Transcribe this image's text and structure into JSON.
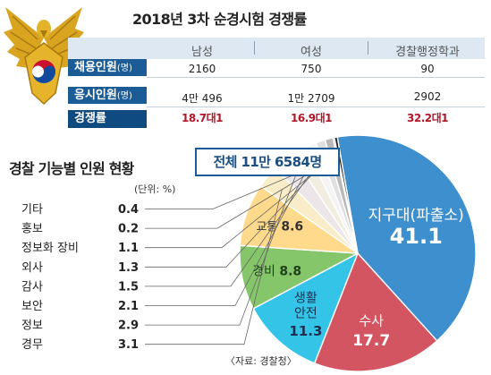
{
  "top_title": "2018년 3차 순경시험 경쟁률",
  "stats_table": {
    "columns": [
      "남성",
      "여성",
      "경찰행정학과"
    ],
    "rows": [
      {
        "label": "채용인원",
        "unit": "(명)",
        "values": [
          "2160",
          "750",
          "90"
        ]
      },
      {
        "label": "응시인원",
        "unit": "(명)",
        "values": [
          "4만 496",
          "1만 2709",
          "2902"
        ]
      },
      {
        "label": "경쟁률",
        "unit": "",
        "values": [
          "18.7대1",
          "16.9대1",
          "32.2대1"
        ]
      }
    ]
  },
  "colors": {
    "header_bg": "#dde8f3",
    "row_label_bg": "#1b5c96",
    "ratio_text": "#b0182a",
    "leader_line": "#666666"
  },
  "chart_data": {
    "type": "pie",
    "title": "경찰 기능별 인원 현황",
    "unit_label": "(단위: %)",
    "total_label": "전체 11만 6584명",
    "source": "〈자료: 경찰청〉",
    "slices": [
      {
        "label": "지구대(파출소)",
        "value": 41.1,
        "color": "#3e8fcd",
        "display": "inside",
        "text_color": "#ffffff"
      },
      {
        "label": "수사",
        "value": 17.7,
        "color": "#d35561",
        "display": "inside",
        "text_color": "#ffffff"
      },
      {
        "label": "생활\n안전",
        "value": 11.3,
        "color": "#34c4e8",
        "display": "inside",
        "text_color": "#1f2f4f"
      },
      {
        "label": "경비",
        "value": 8.8,
        "color": "#85c66a",
        "display": "inside",
        "text_color": "#1f3f1a"
      },
      {
        "label": "교통",
        "value": 8.6,
        "color": "#ffd98c",
        "display": "inside",
        "text_color": "#333333"
      },
      {
        "label": "경무",
        "value": 3.1,
        "color": "#f8edc8",
        "display": "legend",
        "text_color": "#222222"
      },
      {
        "label": "정보",
        "value": 2.9,
        "color": "#ece6e8",
        "display": "legend",
        "text_color": "#222222"
      },
      {
        "label": "보안",
        "value": 2.1,
        "color": "#f1eee0",
        "display": "legend",
        "text_color": "#222222"
      },
      {
        "label": "감사",
        "value": 1.5,
        "color": "#f4f4f4",
        "display": "legend",
        "text_color": "#222222"
      },
      {
        "label": "외사",
        "value": 1.3,
        "color": "#e0e0e0",
        "display": "legend",
        "text_color": "#222222"
      },
      {
        "label": "정보화 장비",
        "value": 1.1,
        "color": "#b8b8b8",
        "display": "legend",
        "text_color": "#222222"
      },
      {
        "label": "홍보",
        "value": 0.2,
        "color": "#555555",
        "display": "legend",
        "text_color": "#222222"
      },
      {
        "label": "기타",
        "value": 0.4,
        "color": "#1a1a1a",
        "display": "legend",
        "text_color": "#222222"
      }
    ],
    "legend_order": [
      "기타",
      "홍보",
      "정보화 장비",
      "외사",
      "감사",
      "보안",
      "정보",
      "경무"
    ]
  }
}
